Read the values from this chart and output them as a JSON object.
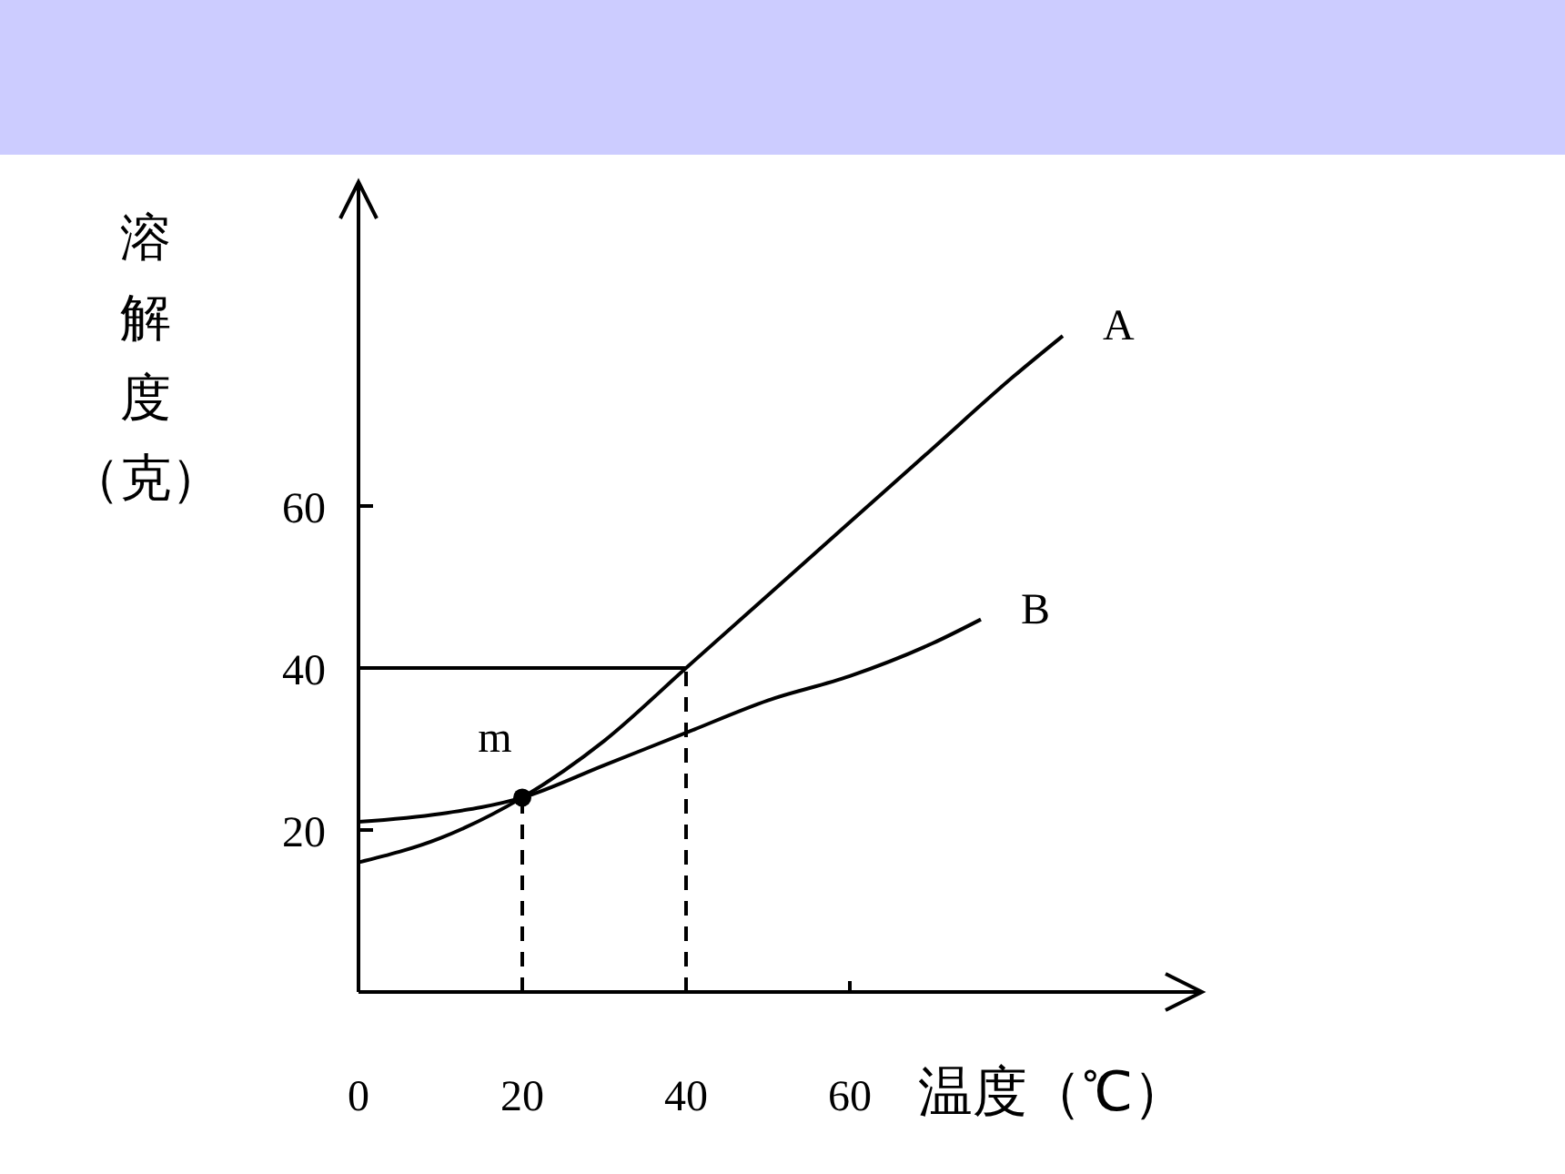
{
  "chart_data": {
    "type": "line",
    "xlabel": "温度（℃）",
    "ylabel": "溶解度（克）",
    "xlim": [
      0,
      103
    ],
    "ylim": [
      0,
      100
    ],
    "xticks": [
      0,
      20,
      40,
      60
    ],
    "yticks": [
      20,
      40,
      60
    ],
    "grid": false,
    "legend": false,
    "marker": "none",
    "series": [
      {
        "name": "A",
        "color": "#000000",
        "x": [
          0,
          10,
          20,
          30,
          40,
          50,
          60,
          70,
          80,
          86
        ],
        "values": [
          16,
          19,
          24,
          31,
          40,
          49,
          58,
          67,
          76,
          81
        ]
      },
      {
        "name": "B",
        "color": "#000000",
        "x": [
          0,
          10,
          20,
          30,
          40,
          50,
          60,
          70,
          76
        ],
        "values": [
          21,
          22,
          24,
          28,
          32,
          36,
          39,
          43,
          46
        ]
      },
      {
        "type": "scatter",
        "color": "#000000",
        "x": [
          20
        ],
        "values": [
          24
        ],
        "marker": "circle"
      }
    ],
    "ref_lines": [
      {
        "axis": "y",
        "value": 40,
        "color": "#000000",
        "line_style": "solid"
      },
      {
        "axis": "x",
        "value": 40,
        "color": "#000000",
        "line_style": "dashed"
      },
      {
        "axis": "x",
        "value": 20,
        "color": "#000000",
        "line_style": "dashed"
      }
    ],
    "annotations": [
      {
        "text": "m",
        "x": 20,
        "y": 24
      }
    ]
  }
}
